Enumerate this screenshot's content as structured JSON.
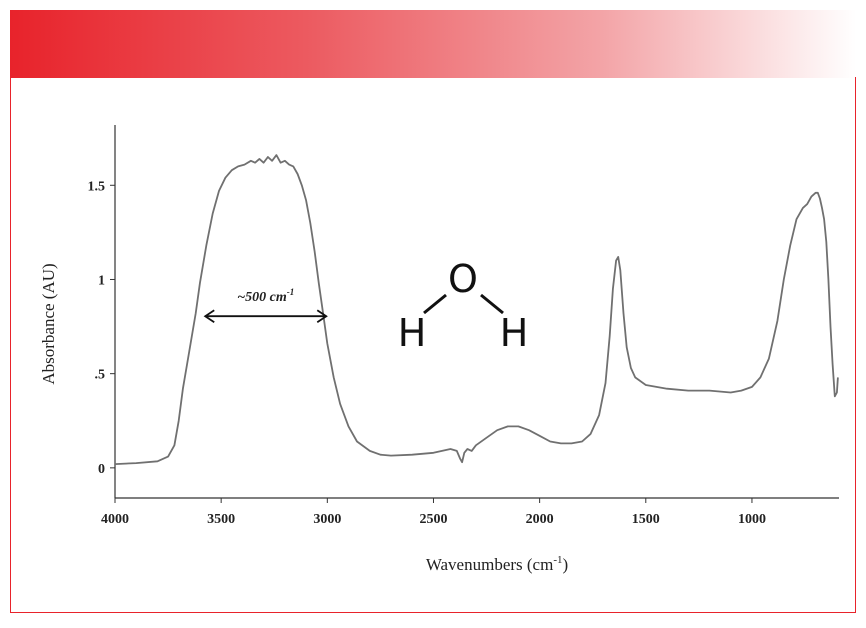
{
  "chart_data": {
    "type": "line",
    "xlabel": "Wavenumbers (cm",
    "xlabel_sup": "-1",
    "xlabel_close": ")",
    "ylabel": "Absorbance (AU)",
    "xlim": [
      4000,
      590
    ],
    "x_reversed": true,
    "ylim": [
      -0.16,
      1.82
    ],
    "x_ticks": [
      {
        "value": 4000,
        "label": "4000"
      },
      {
        "value": 3500,
        "label": "3500"
      },
      {
        "value": 3000,
        "label": "3000"
      },
      {
        "value": 2500,
        "label": "2500"
      },
      {
        "value": 2000,
        "label": "2000"
      },
      {
        "value": 1500,
        "label": "1500"
      },
      {
        "value": 1000,
        "label": "1000"
      }
    ],
    "y_ticks": [
      {
        "value": 0,
        "label": "0"
      },
      {
        "value": 0.5,
        "label": ".5"
      },
      {
        "value": 1,
        "label": "1"
      },
      {
        "value": 1.5,
        "label": "1.5"
      }
    ],
    "grid": false,
    "series": [
      {
        "color": "#707070",
        "points": [
          [
            4000,
            0.02
          ],
          [
            3900,
            0.025
          ],
          [
            3800,
            0.035
          ],
          [
            3750,
            0.06
          ],
          [
            3720,
            0.12
          ],
          [
            3700,
            0.25
          ],
          [
            3680,
            0.42
          ],
          [
            3650,
            0.62
          ],
          [
            3620,
            0.82
          ],
          [
            3600,
            0.98
          ],
          [
            3570,
            1.18
          ],
          [
            3540,
            1.35
          ],
          [
            3510,
            1.47
          ],
          [
            3480,
            1.54
          ],
          [
            3450,
            1.58
          ],
          [
            3420,
            1.6
          ],
          [
            3390,
            1.61
          ],
          [
            3360,
            1.63
          ],
          [
            3340,
            1.62
          ],
          [
            3320,
            1.64
          ],
          [
            3300,
            1.62
          ],
          [
            3280,
            1.65
          ],
          [
            3260,
            1.63
          ],
          [
            3240,
            1.66
          ],
          [
            3220,
            1.62
          ],
          [
            3200,
            1.63
          ],
          [
            3180,
            1.61
          ],
          [
            3160,
            1.6
          ],
          [
            3140,
            1.56
          ],
          [
            3120,
            1.5
          ],
          [
            3100,
            1.42
          ],
          [
            3080,
            1.3
          ],
          [
            3060,
            1.15
          ],
          [
            3040,
            0.98
          ],
          [
            3020,
            0.82
          ],
          [
            3000,
            0.66
          ],
          [
            2970,
            0.48
          ],
          [
            2940,
            0.34
          ],
          [
            2900,
            0.22
          ],
          [
            2860,
            0.14
          ],
          [
            2800,
            0.09
          ],
          [
            2750,
            0.07
          ],
          [
            2700,
            0.065
          ],
          [
            2600,
            0.07
          ],
          [
            2500,
            0.08
          ],
          [
            2420,
            0.1
          ],
          [
            2390,
            0.09
          ],
          [
            2375,
            0.05
          ],
          [
            2365,
            0.03
          ],
          [
            2355,
            0.08
          ],
          [
            2340,
            0.1
          ],
          [
            2320,
            0.09
          ],
          [
            2300,
            0.12
          ],
          [
            2250,
            0.16
          ],
          [
            2200,
            0.2
          ],
          [
            2150,
            0.22
          ],
          [
            2100,
            0.22
          ],
          [
            2050,
            0.2
          ],
          [
            2000,
            0.17
          ],
          [
            1950,
            0.14
          ],
          [
            1900,
            0.13
          ],
          [
            1850,
            0.13
          ],
          [
            1800,
            0.14
          ],
          [
            1760,
            0.18
          ],
          [
            1720,
            0.28
          ],
          [
            1690,
            0.45
          ],
          [
            1670,
            0.7
          ],
          [
            1655,
            0.95
          ],
          [
            1640,
            1.1
          ],
          [
            1630,
            1.12
          ],
          [
            1620,
            1.05
          ],
          [
            1605,
            0.82
          ],
          [
            1590,
            0.64
          ],
          [
            1570,
            0.53
          ],
          [
            1550,
            0.48
          ],
          [
            1500,
            0.44
          ],
          [
            1450,
            0.43
          ],
          [
            1400,
            0.42
          ],
          [
            1300,
            0.41
          ],
          [
            1200,
            0.41
          ],
          [
            1100,
            0.4
          ],
          [
            1050,
            0.41
          ],
          [
            1000,
            0.43
          ],
          [
            960,
            0.48
          ],
          [
            920,
            0.58
          ],
          [
            880,
            0.78
          ],
          [
            850,
            1.0
          ],
          [
            820,
            1.18
          ],
          [
            790,
            1.32
          ],
          [
            760,
            1.38
          ],
          [
            740,
            1.4
          ],
          [
            720,
            1.44
          ],
          [
            700,
            1.46
          ],
          [
            690,
            1.46
          ],
          [
            680,
            1.43
          ],
          [
            670,
            1.38
          ],
          [
            660,
            1.32
          ],
          [
            650,
            1.2
          ],
          [
            640,
            1.0
          ],
          [
            630,
            0.75
          ],
          [
            620,
            0.55
          ],
          [
            610,
            0.38
          ],
          [
            600,
            0.4
          ],
          [
            595,
            0.48
          ]
        ]
      }
    ],
    "annotations": {
      "width_label": "~500 cm",
      "width_label_sup": "-1",
      "width_arrow_from": 3575,
      "width_arrow_to": 3005,
      "width_arrow_y": 0.805
    },
    "molecule": {
      "center_atom": "O",
      "left_atom": "H",
      "right_atom": "H"
    }
  },
  "colors": {
    "banner_start": "#e8232b",
    "frame_border": "#e8232b",
    "curve": "#707070",
    "axis": "#333333"
  }
}
